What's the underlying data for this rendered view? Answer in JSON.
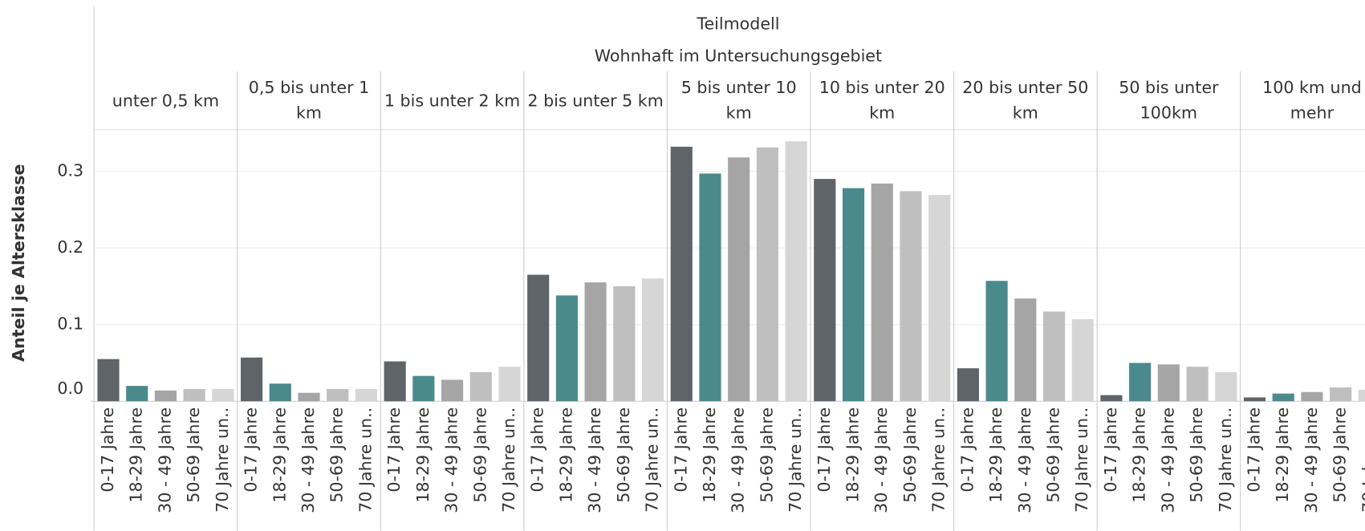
{
  "chart_data": {
    "type": "bar",
    "title": "Teilmodell",
    "subtitle": "Wohnhaft im Untersuchungsgebiet",
    "y_label": "Anteil je Altersklasse",
    "categories": [
      "unter 0,5 km",
      "0,5 bis unter 1 km",
      "1 bis unter 2 km",
      "2 bis unter 5 km",
      "5 bis unter 10 km",
      "10 bis unter 20 km",
      "20 bis unter 50 km",
      "50 bis unter 100km",
      "100 km und mehr"
    ],
    "series": [
      {
        "name": "0-17 Jahre",
        "color": "#5f6468",
        "values": [
          0.055,
          0.057,
          0.052,
          0.165,
          0.332,
          0.29,
          0.043,
          0.008,
          0.005
        ]
      },
      {
        "name": "18-29 Jahre",
        "color": "#4a8a8c",
        "values": [
          0.02,
          0.023,
          0.033,
          0.138,
          0.297,
          0.278,
          0.157,
          0.05,
          0.01
        ]
      },
      {
        "name": "30 - 49 Jahre",
        "color": "#a5a5a5",
        "values": [
          0.014,
          0.011,
          0.028,
          0.155,
          0.318,
          0.284,
          0.134,
          0.048,
          0.012
        ]
      },
      {
        "name": "50-69 Jahre",
        "color": "#bfbfbf",
        "values": [
          0.016,
          0.016,
          0.038,
          0.15,
          0.331,
          0.274,
          0.117,
          0.045,
          0.018
        ]
      },
      {
        "name": "70 Jahre un..",
        "color": "#d6d6d6",
        "values": [
          0.016,
          0.016,
          0.045,
          0.16,
          0.339,
          0.269,
          0.107,
          0.038,
          0.015
        ]
      }
    ],
    "ylim": [
      0,
      0.353
    ],
    "yticks": [
      {
        "value": 0,
        "label": "0.0"
      },
      0.1,
      0.2,
      0.3
    ],
    "grid": true
  }
}
